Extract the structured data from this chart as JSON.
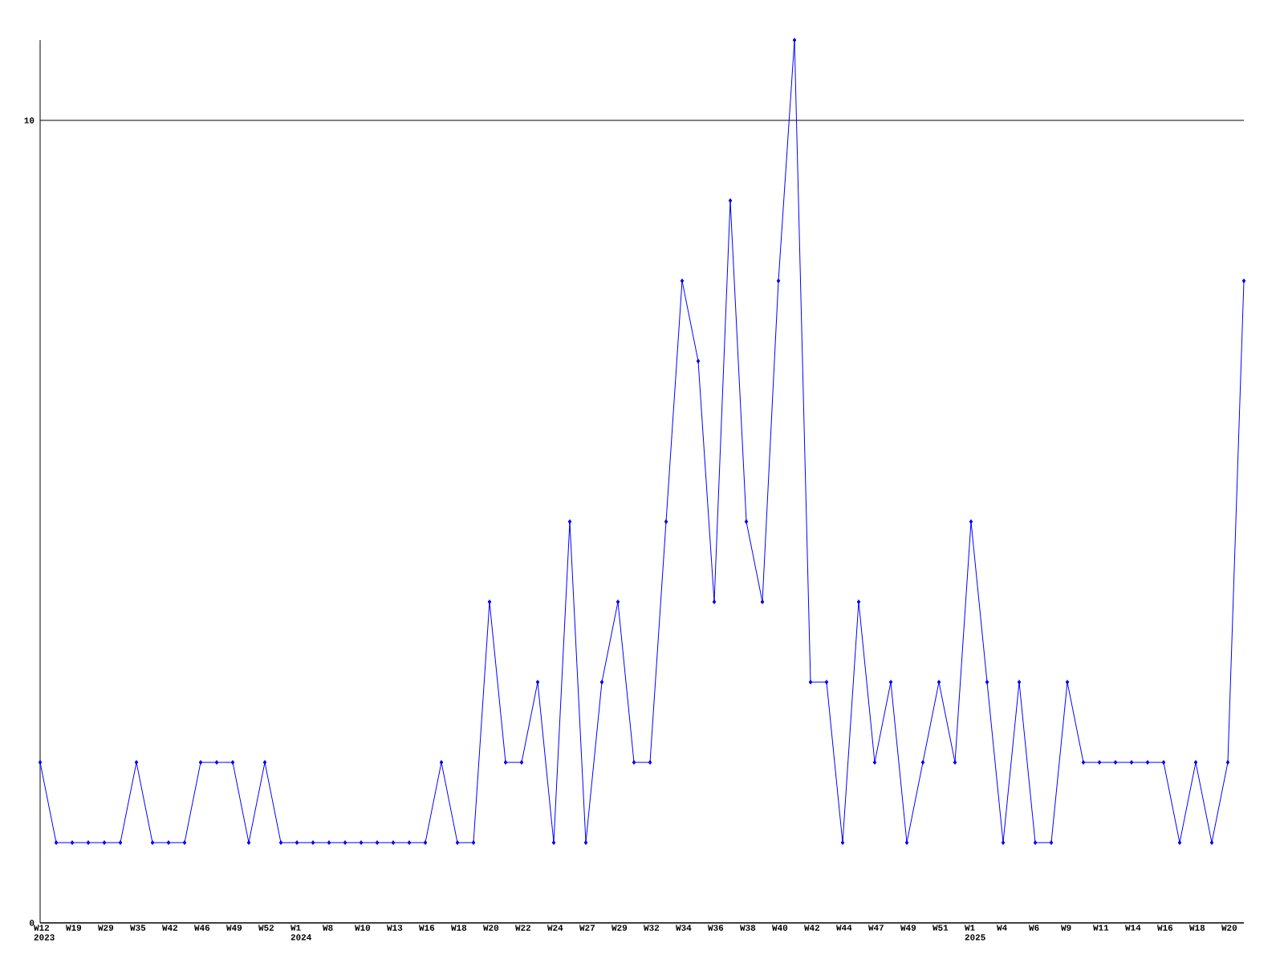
{
  "chart_data": {
    "type": "line",
    "categories": [
      "W12 2023",
      null,
      "W19",
      null,
      "W29",
      null,
      "W35",
      null,
      "W42",
      null,
      "W46",
      null,
      "W49",
      null,
      "W52",
      null,
      "W1 2024",
      null,
      "W8",
      null,
      "W10",
      null,
      "W13",
      null,
      "W16",
      null,
      "W18",
      null,
      "W20",
      null,
      "W22",
      null,
      "W24",
      null,
      "W27",
      null,
      "W29",
      null,
      "W32",
      null,
      "W34",
      null,
      "W36",
      null,
      "W38",
      null,
      "W40",
      null,
      "W42",
      null,
      "W44",
      null,
      "W47",
      null,
      "W49",
      null,
      "W51",
      null,
      "W1 2025",
      null,
      "W4",
      null,
      "W6",
      null,
      "W9",
      null,
      "W11",
      null,
      "W14",
      null,
      "W16",
      null,
      "W18",
      null,
      "W20",
      null
    ],
    "values": [
      2,
      1,
      1,
      1,
      1,
      1,
      2,
      1,
      1,
      1,
      2,
      2,
      2,
      1,
      2,
      1,
      1,
      1,
      1,
      1,
      1,
      1,
      1,
      1,
      1,
      2,
      1,
      1,
      4,
      2,
      2,
      3,
      1,
      5,
      1,
      3,
      4,
      2,
      2,
      5,
      8,
      7,
      4,
      9,
      5,
      4,
      8,
      11,
      3,
      3,
      1,
      4,
      2,
      3,
      1,
      2,
      3,
      2,
      5,
      3,
      1,
      3,
      1,
      1,
      3,
      2,
      2,
      2,
      2,
      2,
      2,
      1,
      2,
      1,
      2,
      8
    ],
    "color": "#0000ff",
    "marker": "diamond",
    "line_style": "solid",
    "grid": "y",
    "ylim": [
      0,
      11
    ],
    "yticks": [
      0,
      10
    ]
  }
}
